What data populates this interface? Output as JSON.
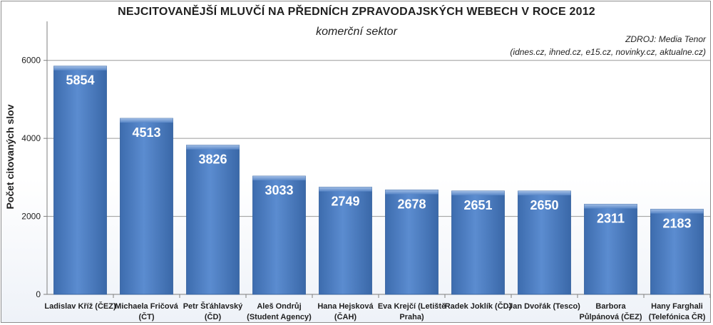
{
  "chart_data": {
    "type": "bar",
    "title": "NEJCITOVANĚJŠÍ MLUVČÍ NA PŘEDNÍCH ZPRAVODAJSKÝCH WEBECH V ROCE 2012",
    "subtitle": "komerční sektor",
    "source_line1": "ZDROJ: Media Tenor",
    "source_line2": "(idnes.cz, ihned.cz, e15.cz, novinky.cz, aktualne.cz)",
    "xlabel": "",
    "ylabel": "Počet citovaných slov",
    "ylim": [
      0,
      7000
    ],
    "yticks": [
      "0",
      "2000",
      "4000",
      "6000"
    ],
    "grid": true,
    "categories": [
      [
        "Ladislav Kříž (ČEZ)"
      ],
      [
        "Michaela Fričová",
        "(ČT)"
      ],
      [
        "Petr Šťáhlavský",
        "(ČD)"
      ],
      [
        "Aleš Ondrůj",
        "(Student Agency)"
      ],
      [
        "Hana Hejsková",
        "(ČAH)"
      ],
      [
        "Eva Krejčí (Letiště",
        "Praha)"
      ],
      [
        "Radek Joklík (ČD)"
      ],
      [
        "Jan Dvořák (Tesco)"
      ],
      [
        "Barbora",
        "Půlpánová (ČEZ)"
      ],
      [
        "Hany Farghali",
        "(Telefónica ČR)"
      ]
    ],
    "values": [
      5854,
      4513,
      3826,
      3033,
      2749,
      2678,
      2651,
      2650,
      2311,
      2183
    ],
    "colors": {
      "bar": "#4f7fc0",
      "bar_dark": "#2f5d9c",
      "grid": "#9a9a9a"
    }
  }
}
